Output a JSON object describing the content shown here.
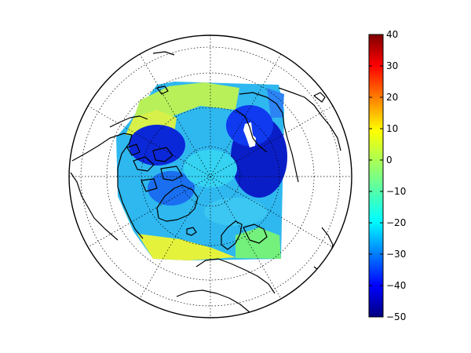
{
  "map": {
    "projection": "north-polar orthographic",
    "field": "temperature-like scalar field over the Arctic",
    "graticule": "dotted",
    "coastlines": true
  },
  "colorbar": {
    "colormap": "jet",
    "min": -50,
    "max": 40,
    "ticks": [
      40,
      30,
      20,
      10,
      0,
      -10,
      -20,
      -30,
      -40,
      -50
    ],
    "tick_labels": [
      "40",
      "30",
      "20",
      "10",
      "0",
      "−10",
      "−20",
      "−30",
      "−40",
      "−50"
    ],
    "colors": [
      "#00007f",
      "#0000ff",
      "#007fff",
      "#00ffff",
      "#7fff7f",
      "#ffff00",
      "#ff7f00",
      "#ff0000",
      "#7f0000"
    ]
  }
}
